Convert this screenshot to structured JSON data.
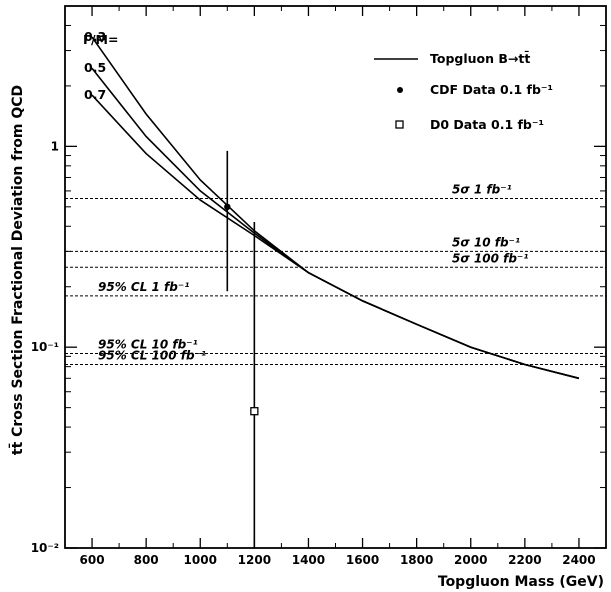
{
  "chart_data": {
    "type": "line",
    "xlabel": "Topgluon Mass (GeV)",
    "ylabel": "tt̄ Cross Section Fractional Deviation from QCD",
    "xlim": [
      500,
      2500
    ],
    "ylim": [
      0.01,
      5
    ],
    "yscale": "log",
    "x_ticks": [
      600,
      800,
      1000,
      1200,
      1400,
      1600,
      1800,
      2000,
      2200,
      2400
    ],
    "y_ticks": [
      {
        "value": 0.01,
        "label": "10⁻²"
      },
      {
        "value": 0.1,
        "label": "10⁻¹"
      },
      {
        "value": 1,
        "label": "1"
      }
    ],
    "width_header": "Γ/M=",
    "series": [
      {
        "name": "Topgluon B→tt̄",
        "label": "0.3",
        "x": [
          600,
          800,
          1000,
          1200,
          1400,
          1600,
          1800,
          2000,
          2200,
          2400
        ],
        "y": [
          3.5,
          1.45,
          0.68,
          0.38,
          0.235,
          0.17,
          0.13,
          0.1,
          0.082,
          0.07
        ]
      },
      {
        "name": "",
        "label": "0.5",
        "x": [
          600,
          800,
          1000,
          1200,
          1400,
          1600,
          1800,
          2000,
          2200,
          2400
        ],
        "y": [
          2.45,
          1.12,
          0.6,
          0.37,
          0.235,
          0.17,
          0.13,
          0.1,
          0.082,
          0.07
        ]
      },
      {
        "name": "",
        "label": "0.7",
        "x": [
          600,
          800,
          1000,
          1200,
          1400,
          1600,
          1800,
          2000,
          2200,
          2400
        ],
        "y": [
          1.8,
          0.92,
          0.54,
          0.36,
          0.235,
          0.17,
          0.13,
          0.1,
          0.082,
          0.07
        ]
      }
    ],
    "data_points": [
      {
        "name": "CDF Data 0.1 fb⁻¹",
        "marker": "filled-circle",
        "x": 1100,
        "y": 0.5,
        "err_low": 0.19,
        "err_high": 0.95
      },
      {
        "name": "D0 Data 0.1 fb⁻¹",
        "marker": "open-square",
        "x": 1200,
        "y": 0.048,
        "err_low": 0.01,
        "err_high": 0.42
      }
    ],
    "reference_lines": [
      {
        "y": 0.55,
        "label": "5σ  1 fb⁻¹",
        "side": "right"
      },
      {
        "y": 0.3,
        "label": "5σ  10 fb⁻¹",
        "side": "right"
      },
      {
        "y": 0.25,
        "label": "5σ  100 fb⁻¹",
        "side": "right"
      },
      {
        "y": 0.18,
        "label": "95% CL  1 fb⁻¹",
        "side": "left"
      },
      {
        "y": 0.093,
        "label": "95% CL  10 fb⁻¹",
        "side": "left"
      },
      {
        "y": 0.082,
        "label": "95% CL  100 fb⁻¹",
        "side": "left"
      }
    ],
    "legend": {
      "position": "top-right",
      "entries": [
        {
          "label": "Topgluon B→tt̄",
          "symbol": "line"
        },
        {
          "label": "CDF Data 0.1 fb⁻¹",
          "symbol": "filled-circle"
        },
        {
          "label": "D0 Data 0.1 fb⁻¹",
          "symbol": "open-square"
        }
      ]
    }
  }
}
